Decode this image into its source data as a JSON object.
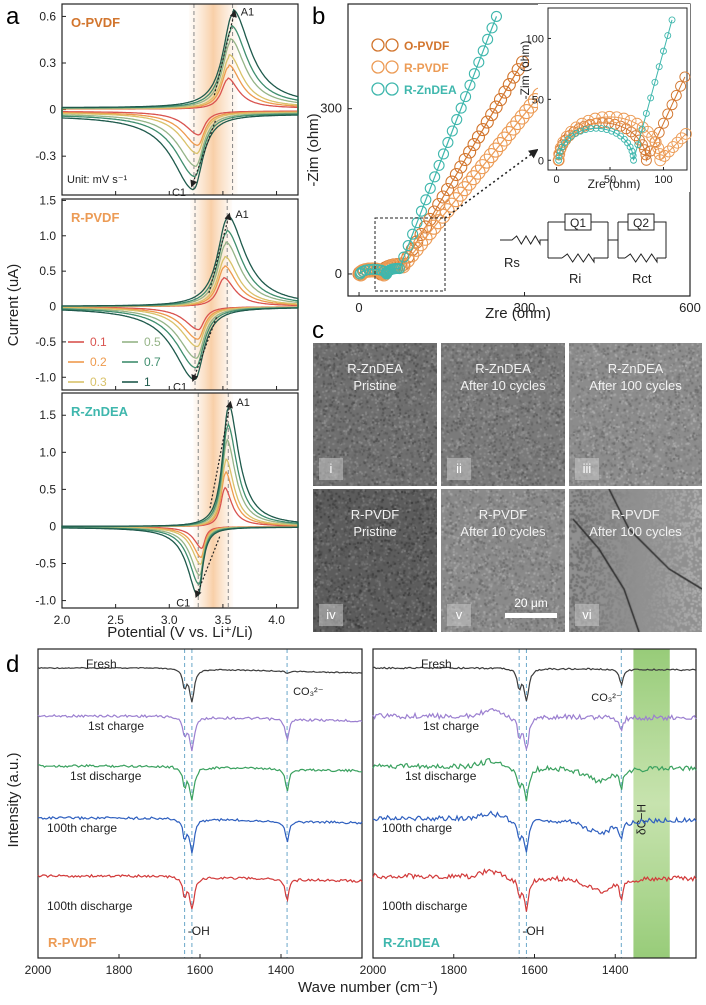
{
  "panel_labels": {
    "a": "a",
    "b": "b",
    "c": "c",
    "d": "d"
  },
  "colors": {
    "scan_rates": [
      "#d9534f",
      "#ee9a4d",
      "#d9c26a",
      "#95b487",
      "#3f8e6e",
      "#1f5a4c"
    ],
    "o_pvdf": "#d2752d",
    "r_pvdf": "#ec9b55",
    "r_zndea": "#3fb7ad",
    "ftir_series": [
      "#3c3c3c",
      "#9b7fd0",
      "#3aa15f",
      "#2e5fbf",
      "#d23a3a"
    ],
    "band": "#8cc66a"
  },
  "chart_data": [
    {
      "id": "cv",
      "type": "line",
      "xlabel": "Potential (V vs. Li⁺/Li)",
      "ylabel": "Current (uA)",
      "xlim": [
        2.0,
        4.2
      ],
      "x_ticks": [
        "2.0",
        "2.5",
        "3.0",
        "3.5",
        "4.0"
      ],
      "unit_note": "Unit: mV s⁻¹",
      "legend_values": [
        "0.1",
        "0.2",
        "0.3",
        "0.5",
        "0.7",
        "1"
      ],
      "scan_rates": [
        0.1,
        0.2,
        0.3,
        0.5,
        0.7,
        1
      ],
      "peak_labels": {
        "anodic": "A1",
        "cathodic": "C1"
      },
      "panels": [
        {
          "name": "O-PVDF",
          "ylim": [
            -0.55,
            0.68
          ],
          "y_ticks": [
            "0.6",
            "0.3",
            "0",
            "-0.3"
          ],
          "anodic_peak_V": 3.59,
          "cathodic_peak_V": 3.23,
          "anodic_peak_uA": 0.62,
          "cathodic_peak_uA": -0.48
        },
        {
          "name": "R-PVDF",
          "ylim": [
            -1.18,
            1.52
          ],
          "y_ticks": [
            "1.5",
            "1.0",
            "0.5",
            "0",
            "-0.5",
            "-1.0"
          ],
          "anodic_peak_V": 3.54,
          "cathodic_peak_V": 3.24,
          "anodic_peak_uA": 1.28,
          "cathodic_peak_uA": -1.02
        },
        {
          "name": "R-ZnDEA",
          "ylim": [
            -1.1,
            1.8
          ],
          "y_ticks": [
            "1.5",
            "1.0",
            "0.5",
            "0",
            "-0.5",
            "-1.0"
          ],
          "anodic_peak_V": 3.55,
          "cathodic_peak_V": 3.27,
          "anodic_peak_uA": 1.65,
          "cathodic_peak_uA": -0.92
        }
      ]
    },
    {
      "id": "eis",
      "type": "scatter",
      "xlabel": "Zre (ohm)",
      "ylabel": "-Zim (ohm)",
      "xlim": [
        -20,
        600
      ],
      "ylim": [
        -40,
        490
      ],
      "x_ticks": [
        "0",
        "300",
        "600"
      ],
      "y_ticks": [
        "0",
        "300"
      ],
      "series": [
        "O-PVDF",
        "R-PVDF",
        "R-ZnDEA"
      ],
      "inset": {
        "xlabel": "Zre (ohm)",
        "ylabel": "-Zim (ohm)",
        "x_ticks": [
          "0",
          "50",
          "100"
        ],
        "y_ticks": [
          "0",
          "50",
          "100"
        ],
        "xlim": [
          -8,
          122
        ],
        "ylim": [
          -8,
          125
        ]
      },
      "circuit": {
        "rs": "Rs",
        "ri": "Ri",
        "rct": "Rct",
        "q1": "Q1",
        "q2": "Q2"
      }
    },
    {
      "id": "ftir_left",
      "type": "line",
      "xlabel": "Wave number (cm⁻¹)",
      "ylabel": "Intensity (a.u.)",
      "xlim": [
        2000,
        1200
      ],
      "x_ticks": [
        "2000",
        "1800",
        "1600",
        "1400"
      ],
      "sample": "R-PVDF",
      "series": [
        "Fresh",
        "1st charge",
        "1st discharge",
        "100th charge",
        "100th discharge"
      ],
      "peaks_cm1": [
        1638,
        1620,
        1385
      ],
      "annotations": {
        "co3": "CO₃²⁻",
        "oh": "-OH"
      }
    },
    {
      "id": "ftir_right",
      "type": "line",
      "xlabel": "Wave number (cm⁻¹)",
      "ylabel": "Intensity (a.u.)",
      "xlim": [
        2000,
        1200
      ],
      "x_ticks": [
        "2000",
        "1800",
        "1600",
        "1400"
      ],
      "sample": "R-ZnDEA",
      "series": [
        "Fresh",
        "1st charge",
        "1st discharge",
        "100th charge",
        "100th discharge"
      ],
      "peaks_cm1": [
        1638,
        1620,
        1385
      ],
      "band_label": "δC−H",
      "annotations": {
        "co3": "CO₃²⁻",
        "oh": "-OH"
      }
    }
  ],
  "sem": {
    "tiles": [
      {
        "sample": "R-ZnDEA",
        "state": "Pristine",
        "index": "i"
      },
      {
        "sample": "R-ZnDEA",
        "state": "After 10 cycles",
        "index": "ii"
      },
      {
        "sample": "R-ZnDEA",
        "state": "After 100 cycles",
        "index": "iii"
      },
      {
        "sample": "R-PVDF",
        "state": "Pristine",
        "index": "iv"
      },
      {
        "sample": "R-PVDF",
        "state": "After 10 cycles",
        "index": "v"
      },
      {
        "sample": "R-PVDF",
        "state": "After 100 cycles",
        "index": "vi"
      }
    ],
    "scale_bar": "20 μm"
  }
}
